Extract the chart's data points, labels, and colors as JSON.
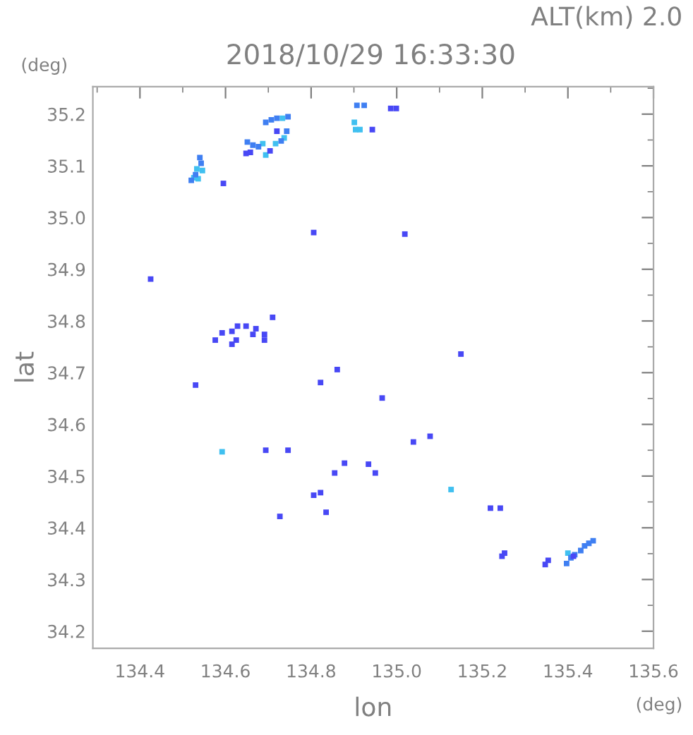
{
  "chart_data": {
    "type": "scatter",
    "title": "2018/10/29 16:33:30",
    "xlabel": "lon",
    "ylabel": "lat",
    "annotations": [
      "ALT(km) 2.0",
      "(deg)",
      "(deg)"
    ],
    "xlim": [
      134.29,
      135.6
    ],
    "ylim": [
      34.167,
      35.253
    ],
    "xticks": [
      134.4,
      134.6,
      134.8,
      {
        "value": 135,
        "label": "135.0"
      },
      135.2,
      135.4,
      135.6
    ],
    "yticks": [
      34.2,
      34.3,
      34.4,
      34.5,
      34.6,
      34.7,
      34.8,
      34.9,
      {
        "value": 35,
        "label": "35.0"
      },
      35.1,
      35.2
    ],
    "grid": false,
    "legend": false,
    "marker": "square",
    "series": [
      {
        "color": "#4848f5",
        "x": [
          134.425,
          134.806,
          135.019,
          134.986,
          134.999,
          134.648,
          134.658,
          134.704,
          134.72,
          134.595,
          134.576,
          134.592,
          134.615,
          134.628,
          134.648,
          134.671,
          134.691,
          134.625,
          134.615,
          134.664,
          134.71,
          134.691,
          134.861,
          134.53,
          134.822,
          134.966,
          135.15,
          134.694,
          134.746,
          134.878,
          134.934,
          134.95,
          134.855,
          134.822,
          134.806,
          134.835,
          134.727,
          135.078,
          135.039,
          135.219,
          135.242,
          135.413,
          135.246,
          135.252,
          135.347,
          135.354,
          134.943
        ],
        "values": [
          34.881,
          34.971,
          34.968,
          35.211,
          35.211,
          35.124,
          35.126,
          35.129,
          35.167,
          35.066,
          34.763,
          34.777,
          34.78,
          34.79,
          34.79,
          34.785,
          34.774,
          34.763,
          34.755,
          34.774,
          34.807,
          34.763,
          34.706,
          34.676,
          34.681,
          34.651,
          34.736,
          34.55,
          34.55,
          34.525,
          34.523,
          34.506,
          34.506,
          34.468,
          34.463,
          34.43,
          34.422,
          34.577,
          34.566,
          34.438,
          34.438,
          34.345,
          34.345,
          34.351,
          34.329,
          34.337,
          35.17
        ]
      },
      {
        "color": "#3f7ff2",
        "x": [
          134.54,
          134.543,
          134.53,
          134.52,
          134.651,
          134.664,
          134.677,
          134.73,
          134.694,
          134.707,
          134.72,
          134.746,
          134.743,
          134.907,
          134.924,
          135.397,
          135.407,
          135.416,
          135.43,
          135.439,
          135.449,
          135.459
        ],
        "values": [
          35.116,
          35.105,
          35.083,
          35.072,
          35.146,
          35.14,
          35.137,
          35.148,
          35.184,
          35.189,
          35.192,
          35.195,
          35.167,
          35.217,
          35.217,
          34.331,
          34.342,
          34.348,
          34.356,
          34.365,
          34.37,
          34.375
        ]
      },
      {
        "color": "#40c0f0",
        "x": [
          134.533,
          134.546,
          134.536,
          134.526,
          134.687,
          134.694,
          134.717,
          134.737,
          134.733,
          134.901,
          134.904,
          134.914,
          134.592,
          135.127,
          135.4
        ],
        "values": [
          35.094,
          35.091,
          35.075,
          35.077,
          35.143,
          35.121,
          35.143,
          35.154,
          35.192,
          35.184,
          35.17,
          35.17,
          34.547,
          34.474,
          34.351
        ]
      }
    ]
  }
}
